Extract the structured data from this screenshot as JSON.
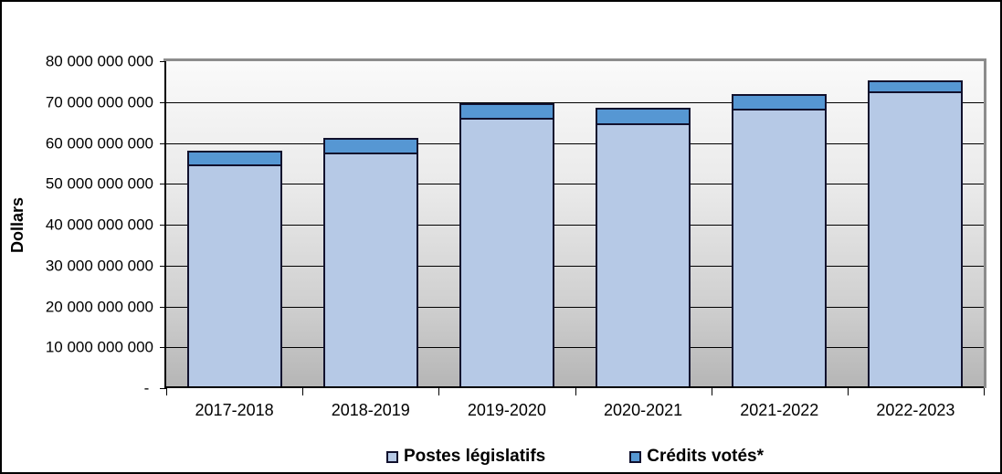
{
  "colors": {
    "series_light_blue": "#b6c9e6",
    "series_medium_blue": "#5697d3",
    "bar_border": "#11112d",
    "gridline": "#000000",
    "plot_border_gray": "#8c8c8c",
    "frame_border": "#000000",
    "background": "#ffffff"
  },
  "chart_data": {
    "type": "bar",
    "stacked": true,
    "title": "",
    "xlabel": "",
    "ylabel": "Dollars",
    "ylim": [
      0,
      80000000000
    ],
    "grid": true,
    "legend_position": "bottom",
    "categories": [
      "2017-2018",
      "2018-2019",
      "2019-2020",
      "2020-2021",
      "2021-2022",
      "2022-2023"
    ],
    "series": [
      {
        "name": "Postes législatifs",
        "color": "#b6c9e6",
        "values": [
          54700000000,
          57700000000,
          66100000000,
          64900000000,
          68400000000,
          72600000000
        ]
      },
      {
        "name": "Crédits votés*",
        "color": "#5697d3",
        "values": [
          3300000000,
          3500000000,
          3600000000,
          3800000000,
          3500000000,
          2800000000
        ]
      }
    ],
    "y_ticks": [
      {
        "value": 0,
        "label": "- "
      },
      {
        "value": 10000000000,
        "label": "10 000 000 000"
      },
      {
        "value": 20000000000,
        "label": "20 000 000 000"
      },
      {
        "value": 30000000000,
        "label": "30 000 000 000"
      },
      {
        "value": 40000000000,
        "label": "40 000 000 000"
      },
      {
        "value": 50000000000,
        "label": "50 000 000 000"
      },
      {
        "value": 60000000000,
        "label": "60 000 000 000"
      },
      {
        "value": 70000000000,
        "label": "70 000 000 000"
      },
      {
        "value": 80000000000,
        "label": "80 000 000 000"
      }
    ]
  },
  "legend": {
    "items": [
      {
        "label": "Postes législatifs"
      },
      {
        "label": "Crédits votés*"
      }
    ]
  }
}
